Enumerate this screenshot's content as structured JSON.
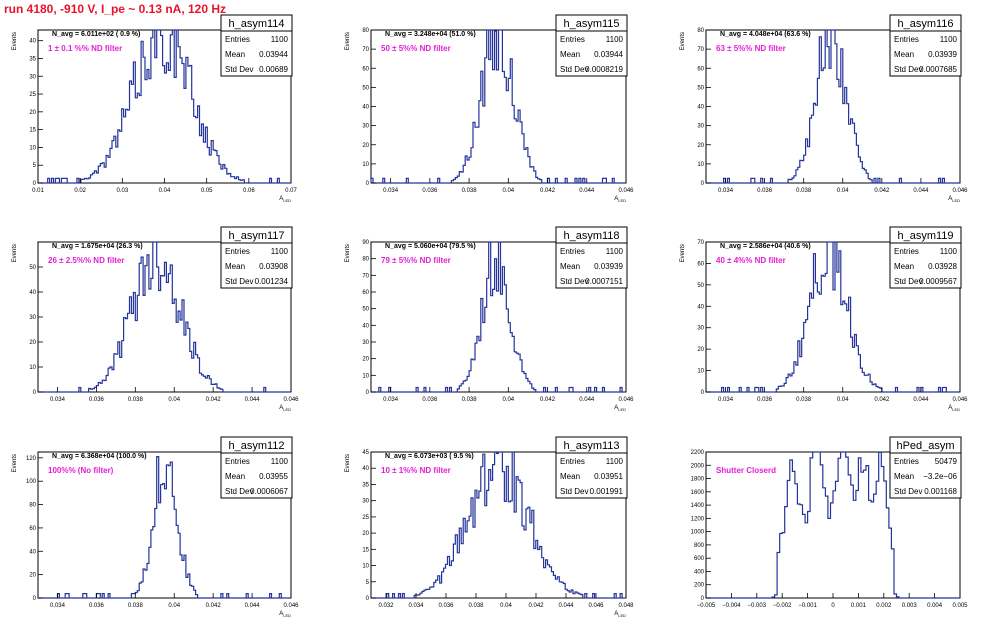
{
  "canvas": {
    "title": "run 4180,  -910 V, I_pe ~ 0.13 nA, 120 Hz"
  },
  "colors": {
    "histogram": "#24349a",
    "note": "#e61ed6",
    "title": "#e8132b",
    "axis": "#000000"
  },
  "chart_data": [
    {
      "type": "bar",
      "name": "h_asym114",
      "stats": {
        "entries": "1100",
        "mean": "0.03944",
        "std_dev": "0.00689"
      },
      "avg_label": "N_avg = 6.011e+02 ( 0.9 %)",
      "note": "1 ± 0.1 %% ND filter",
      "xlabel": "A_LED",
      "ylabel": "Events",
      "xlim": [
        0.01,
        0.07
      ],
      "ylim": [
        0,
        43
      ],
      "x_ticks": [
        "0.01",
        "0.02",
        "0.03",
        "0.04",
        "0.05",
        "0.06",
        "0.07"
      ],
      "y_ticks": [
        0,
        5,
        10,
        15,
        20,
        25,
        30,
        35,
        40
      ],
      "mu": 0.03944,
      "sigma": 0.00689,
      "peak": 42,
      "seed": 114
    },
    {
      "type": "bar",
      "name": "h_asym115",
      "stats": {
        "entries": "1100",
        "mean": "0.03944",
        "std_dev": "0.0008219"
      },
      "avg_label": "N_avg = 3.248e+04 (51.0 %)",
      "note": "50 ± 5%% ND filter",
      "xlabel": "A_LED",
      "ylabel": "Events",
      "xlim": [
        0.033,
        0.046
      ],
      "ylim": [
        0,
        80
      ],
      "x_ticks": [
        "0.034",
        "0.036",
        "0.038",
        "0.04",
        "0.042",
        "0.044",
        "0.046"
      ],
      "y_ticks": [
        0,
        10,
        20,
        30,
        40,
        50,
        60,
        70,
        80
      ],
      "mu": 0.03944,
      "sigma": 0.0008219,
      "peak": 78,
      "seed": 115
    },
    {
      "type": "bar",
      "name": "h_asym116",
      "stats": {
        "entries": "1100",
        "mean": "0.03939",
        "std_dev": "0.0007685"
      },
      "avg_label": "N_avg = 4.048e+04 (63.6 %)",
      "note": "63 ± 5%% ND filter",
      "xlabel": "A_LED",
      "ylabel": "Events",
      "xlim": [
        0.033,
        0.046
      ],
      "ylim": [
        0,
        80
      ],
      "x_ticks": [
        "0.034",
        "0.036",
        "0.038",
        "0.04",
        "0.042",
        "0.044",
        "0.046"
      ],
      "y_ticks": [
        0,
        10,
        20,
        30,
        40,
        50,
        60,
        70,
        80
      ],
      "mu": 0.03939,
      "sigma": 0.0007685,
      "peak": 79,
      "seed": 116
    },
    {
      "type": "bar",
      "name": "h_asym117",
      "stats": {
        "entries": "1100",
        "mean": "0.03908",
        "std_dev": "0.001234"
      },
      "avg_label": "N_avg = 1.675e+04 (26.3 %)",
      "note": "26 ± 2.5%% ND filter",
      "xlabel": "A_LED",
      "ylabel": "Events",
      "xlim": [
        0.033,
        0.046
      ],
      "ylim": [
        0,
        60
      ],
      "x_ticks": [
        "0.034",
        "0.036",
        "0.038",
        "0.04",
        "0.042",
        "0.044",
        "0.046"
      ],
      "y_ticks": [
        0,
        10,
        20,
        30,
        40,
        50
      ],
      "mu": 0.03908,
      "sigma": 0.001234,
      "peak": 56,
      "seed": 117
    },
    {
      "type": "bar",
      "name": "h_asym118",
      "stats": {
        "entries": "1100",
        "mean": "0.03939",
        "std_dev": "0.0007151"
      },
      "avg_label": "N_avg = 5.060e+04 (79.5 %)",
      "note": "79 ± 5%% ND filter",
      "xlabel": "A_LED",
      "ylabel": "Events",
      "xlim": [
        0.033,
        0.046
      ],
      "ylim": [
        0,
        90
      ],
      "x_ticks": [
        "0.034",
        "0.036",
        "0.038",
        "0.04",
        "0.042",
        "0.044",
        "0.046"
      ],
      "y_ticks": [
        0,
        10,
        20,
        30,
        40,
        50,
        60,
        70,
        80,
        90
      ],
      "mu": 0.03939,
      "sigma": 0.0007151,
      "peak": 80,
      "seed": 118
    },
    {
      "type": "bar",
      "name": "h_asym119",
      "stats": {
        "entries": "1100",
        "mean": "0.03928",
        "std_dev": "0.0009567"
      },
      "avg_label": "N_avg = 2.586e+04 (40.6 %)",
      "note": "40 ± 4%% ND filter",
      "xlabel": "A_LED",
      "ylabel": "Events",
      "xlim": [
        0.033,
        0.046
      ],
      "ylim": [
        0,
        70
      ],
      "x_ticks": [
        "0.034",
        "0.036",
        "0.038",
        "0.04",
        "0.042",
        "0.044",
        "0.046"
      ],
      "y_ticks": [
        0,
        10,
        20,
        30,
        40,
        50,
        60,
        70
      ],
      "mu": 0.03928,
      "sigma": 0.0009567,
      "peak": 68,
      "seed": 119
    },
    {
      "type": "bar",
      "name": "h_asym112",
      "stats": {
        "entries": "1100",
        "mean": "0.03955",
        "std_dev": "0.0006067"
      },
      "avg_label": "N_avg = 6.368e+04 (100.0 %)",
      "note": "100%% (No filter)",
      "xlabel": "A_LED",
      "ylabel": "Events",
      "xlim": [
        0.033,
        0.046
      ],
      "ylim": [
        0,
        125
      ],
      "x_ticks": [
        "0.034",
        "0.036",
        "0.038",
        "0.04",
        "0.042",
        "0.044",
        "0.046"
      ],
      "y_ticks": [
        0,
        20,
        40,
        60,
        80,
        100,
        120
      ],
      "mu": 0.03955,
      "sigma": 0.0006067,
      "peak": 118,
      "seed": 112
    },
    {
      "type": "bar",
      "name": "h_asym113",
      "stats": {
        "entries": "1100",
        "mean": "0.03951",
        "std_dev": "0.001991"
      },
      "avg_label": "N_avg = 6.073e+03 ( 9.5 %)",
      "note": "10 ± 1%% ND filter",
      "xlabel": "A_LED",
      "ylabel": "Events",
      "xlim": [
        0.031,
        0.048
      ],
      "ylim": [
        0,
        45
      ],
      "x_ticks": [
        "0.032",
        "0.034",
        "0.036",
        "0.038",
        "0.04",
        "0.042",
        "0.044",
        "0.046",
        "0.048"
      ],
      "y_ticks": [
        0,
        5,
        10,
        15,
        20,
        25,
        30,
        35,
        40,
        45
      ],
      "mu": 0.03951,
      "sigma": 0.001991,
      "peak": 42,
      "seed": 113
    },
    {
      "type": "bar",
      "name": "hPed_asym",
      "stats": {
        "entries": "50479",
        "mean": "−3.2e−06",
        "std_dev": "0.001168"
      },
      "avg_label": "",
      "note": "Shutter Closerd",
      "xlabel": "",
      "ylabel": "",
      "xlim": [
        -0.005,
        0.005
      ],
      "ylim": [
        0,
        2200
      ],
      "x_ticks": [
        "−0.005",
        "−0.004",
        "−0.003",
        "−0.002",
        "−0.001",
        "0",
        "0.001",
        "0.002",
        "0.003",
        "0.004",
        "0.005"
      ],
      "y_ticks": [
        0,
        200,
        400,
        600,
        800,
        1000,
        1200,
        1400,
        1600,
        1800,
        2000,
        2200
      ],
      "peaks": [
        {
          "x": -0.0016,
          "h": 1280,
          "w": 0.00025
        },
        {
          "x": -0.0006,
          "h": 1780,
          "w": 0.00028
        },
        {
          "x": 0.0004,
          "h": 2080,
          "w": 0.00024
        },
        {
          "x": 0.0012,
          "h": 1480,
          "w": 0.00025
        },
        {
          "x": 0.0019,
          "h": 1300,
          "w": 0.00022
        }
      ],
      "base": 650,
      "base_lo": -0.0022,
      "base_hi": 0.0024,
      "seed": 999
    }
  ]
}
